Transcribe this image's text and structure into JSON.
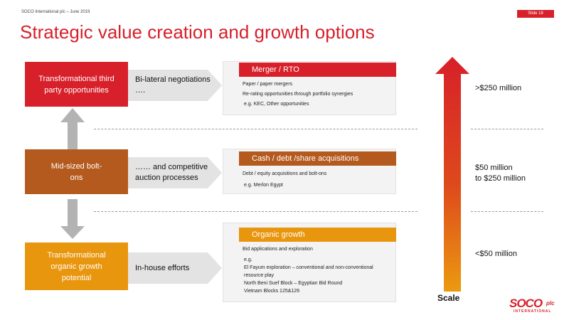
{
  "header": {
    "company_date": "SOCO International plc – June 2019",
    "slide": "Slide 18"
  },
  "title": "Strategic value creation and growth options",
  "rows": [
    {
      "left_label": "Transformational third party opportunities",
      "color": "#d7202a",
      "chevron": "Bi-lateral negotiations ….",
      "panel_title": "Merger / RTO",
      "panel_lines": [
        "Paper / paper mergers",
        "Re-rating opportunities through portfolio synergies",
        "e.g.  KEC, Other opportunities"
      ],
      "scale": ">$250 million"
    },
    {
      "left_label": "Mid-sized bolt-ons",
      "color": "#b45a1e",
      "chevron": "…… and competitive auction processes",
      "panel_title": "Cash / debt /share acquisitions",
      "panel_lines": [
        "Debt / equity acquisitions and bolt-ons",
        "e.g. Merlon Egypt"
      ],
      "scale_line1": "$50 million",
      "scale_line2": "to $250 million"
    },
    {
      "left_label": "Transformational organic growth potential",
      "color": "#e8960e",
      "chevron": "In-house efforts",
      "panel_title": "Organic growth",
      "panel_lines": [
        "Bid applications and exploration",
        "e.g.",
        "El Fayum exploration – conventional and non-conventional resource play",
        "North Beni Suef Block – Egyptian Bid Round",
        "Vietnam Blocks 125&126"
      ],
      "scale": "<$50 million"
    }
  ],
  "scale_label": "Scale",
  "logo": {
    "main": "SOCO",
    "plc": "plc",
    "sub": "INTERNATIONAL"
  },
  "colors": {
    "red": "#d7202a",
    "brown": "#b45a1e",
    "orange": "#e8960e",
    "grey_arrow": "#b3b3b3"
  }
}
